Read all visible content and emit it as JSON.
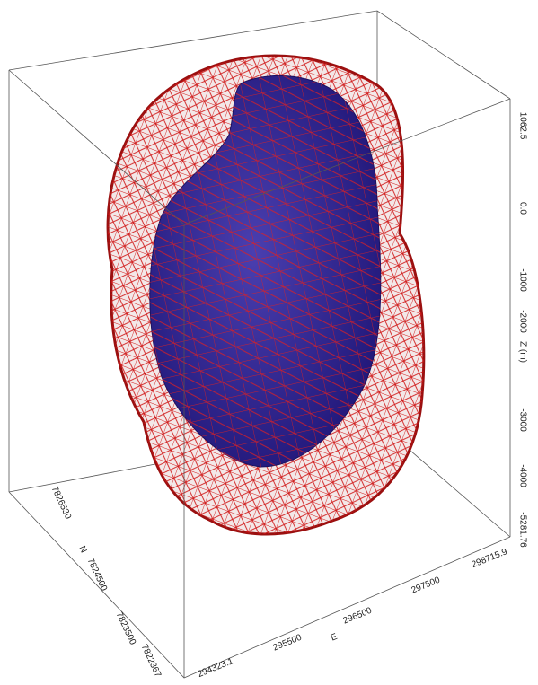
{
  "axes": {
    "z": {
      "label": "Z (m)",
      "ticks": [
        "1062.5",
        "0.0",
        "-1000",
        "-2000",
        "-3000",
        "-4000",
        "-5281.76"
      ]
    },
    "e": {
      "label": "E",
      "ticks": [
        "294323.1",
        "295500",
        "296500",
        "297500",
        "298715.9"
      ]
    },
    "n": {
      "label": "N",
      "ticks": [
        "7826530",
        "7824500",
        "7823500",
        "7822367"
      ]
    }
  }
}
